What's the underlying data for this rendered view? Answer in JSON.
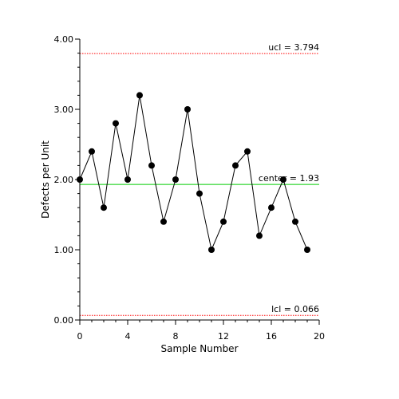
{
  "chart_data": {
    "type": "line",
    "xlabel": "Sample Number",
    "ylabel": "Defects per Unit",
    "xlim": [
      0,
      20
    ],
    "ylim": [
      0,
      4
    ],
    "x_ticks": [
      0,
      4,
      8,
      12,
      16,
      20
    ],
    "x_tick_labels": [
      "0",
      "4",
      "8",
      "12",
      "16",
      "20"
    ],
    "y_ticks": [
      0,
      1,
      2,
      3,
      4
    ],
    "y_tick_labels": [
      "0.00",
      "1.00",
      "2.00",
      "3.00",
      "4.00"
    ],
    "grid": false,
    "legend": "none",
    "series": [
      {
        "x": [
          0,
          1,
          2,
          3,
          4,
          5,
          6,
          7,
          8,
          9,
          10,
          11,
          12,
          13,
          14,
          15,
          16,
          17,
          18,
          19
        ],
        "y": [
          2.0,
          2.4,
          1.6,
          2.8,
          2.0,
          3.2,
          2.2,
          1.4,
          2.0,
          3.0,
          1.8,
          1.0,
          1.4,
          2.2,
          2.4,
          1.2,
          1.6,
          2.0,
          1.4,
          1.0
        ],
        "color": "#000000"
      }
    ],
    "reference_lines": [
      {
        "value": 3.794,
        "label": "ucl = 3.794",
        "color": "#ff0000",
        "style": "dotted"
      },
      {
        "value": 1.93,
        "label": "center = 1.93",
        "color": "#00cc00",
        "style": "solid"
      },
      {
        "value": 0.066,
        "label": "lcl = 0.066",
        "color": "#ff0000",
        "style": "dotted"
      }
    ]
  }
}
